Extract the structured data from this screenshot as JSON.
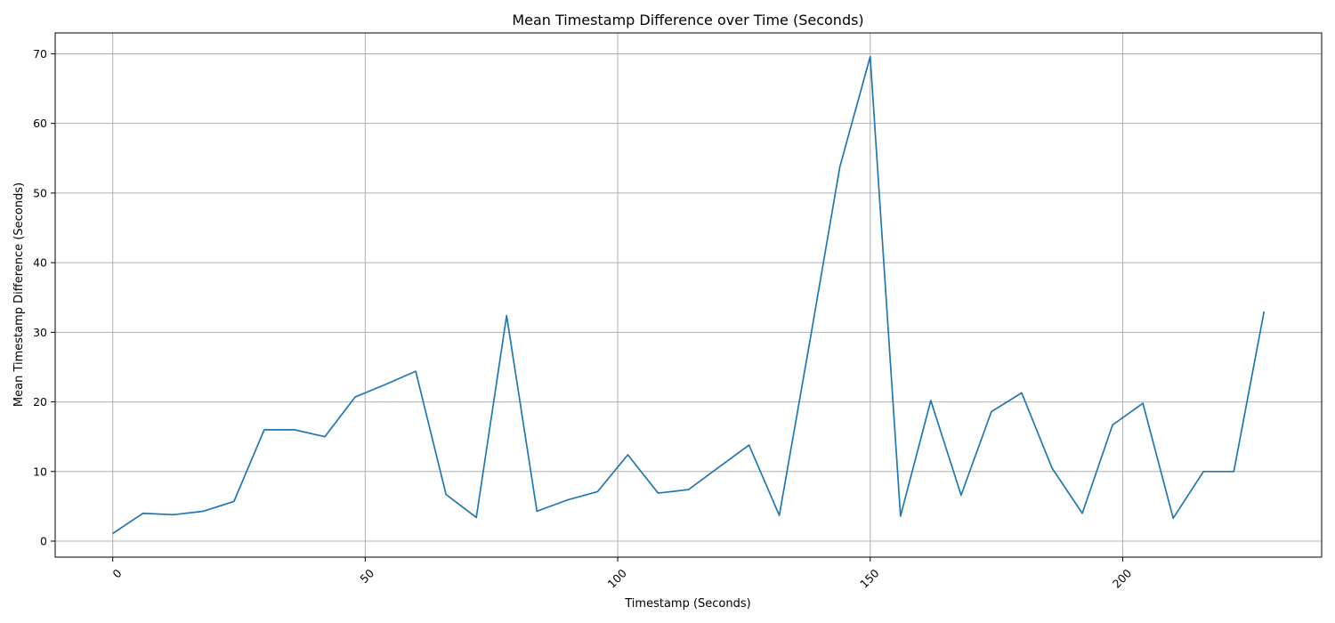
{
  "chart_data": {
    "type": "line",
    "title": "Mean Timestamp Difference over Time (Seconds)",
    "xlabel": "Timestamp (Seconds)",
    "ylabel": "Mean Timestamp Difference (Seconds)",
    "xlim": [
      -11.4,
      239.4
    ],
    "ylim": [
      -2.3,
      73.0
    ],
    "xticks": [
      0,
      50,
      100,
      150,
      200
    ],
    "yticks": [
      0,
      10,
      20,
      30,
      40,
      50,
      60,
      70
    ],
    "xtick_rotation": 45,
    "grid": true,
    "series": [
      {
        "color": "#1f77b4",
        "x": [
          0,
          6,
          12,
          18,
          24,
          30,
          36,
          42,
          48,
          54,
          60,
          66,
          72,
          78,
          84,
          90,
          96,
          102,
          108,
          114,
          120,
          126,
          132,
          138,
          144,
          150,
          156,
          162,
          168,
          174,
          180,
          186,
          192,
          198,
          204,
          210,
          216,
          222,
          228
        ],
        "y": [
          1.1,
          4.0,
          3.8,
          4.3,
          5.7,
          16.0,
          16.0,
          15.0,
          20.7,
          22.5,
          24.4,
          6.7,
          3.4,
          32.4,
          4.3,
          5.9,
          7.1,
          12.4,
          6.9,
          7.4,
          10.6,
          13.8,
          3.7,
          28.5,
          53.8,
          69.6,
          3.6,
          20.2,
          6.6,
          18.6,
          21.3,
          10.5,
          4.0,
          16.7,
          19.8,
          3.3,
          10.0,
          10.0,
          33.0
        ]
      }
    ]
  }
}
